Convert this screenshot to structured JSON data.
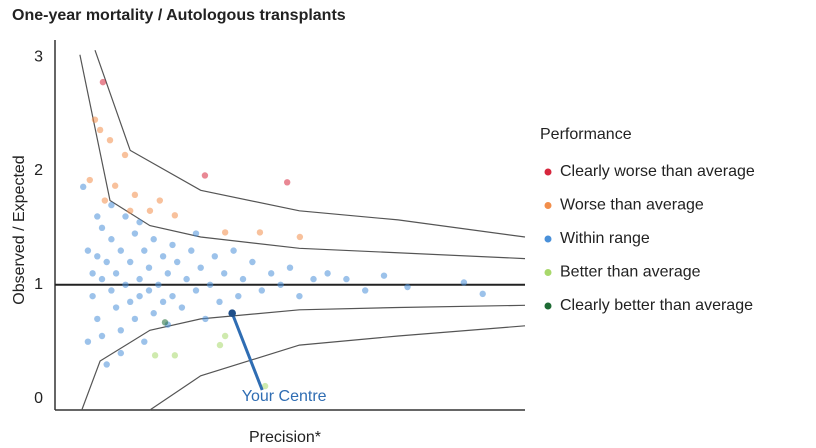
{
  "chart_data": {
    "type": "scatter",
    "title": "One-year mortality / Autologous transplants",
    "x_label": "Precision*",
    "y_label": "Observed / Expected",
    "legend_title": "Performance",
    "xlim": [
      0,
      100
    ],
    "ylim": [
      -0.1,
      3.15
    ],
    "yticks": [
      0,
      1,
      2,
      3
    ],
    "reference_line": 1,
    "series": [
      {
        "name": "Clearly worse than average",
        "color": "#d7263d",
        "x": [
          10.2,
          31.9,
          49.4
        ],
        "values": [
          2.78,
          1.96,
          1.9
        ]
      },
      {
        "name": "Worse than average",
        "color": "#f28e4b",
        "x": [
          8.5,
          9.6,
          11.7,
          14.9,
          7.4,
          12.8,
          10.6,
          17,
          20.2,
          25.5,
          36.2,
          43.6,
          52.1,
          16,
          22.3
        ],
        "values": [
          2.45,
          2.36,
          2.27,
          2.14,
          1.92,
          1.87,
          1.74,
          1.79,
          1.65,
          1.61,
          1.46,
          1.46,
          1.42,
          1.65,
          1.74
        ]
      },
      {
        "name": "Within range",
        "color": "#4a90d9",
        "x": [
          6,
          7,
          8,
          8,
          9,
          9,
          10,
          10,
          10,
          11,
          11,
          12,
          12,
          13,
          13,
          14,
          14,
          15,
          15,
          16,
          16,
          17,
          17,
          18,
          18,
          19,
          19,
          20,
          20,
          21,
          21,
          22,
          23,
          23,
          24,
          25,
          25,
          26,
          27,
          28,
          29,
          30,
          31,
          32,
          33,
          34,
          35,
          36,
          38,
          39,
          40,
          42,
          44,
          46,
          48,
          50,
          52,
          55,
          58,
          62,
          66,
          70,
          75,
          87,
          91,
          12,
          9,
          14,
          18,
          24,
          30,
          7
        ],
        "values": [
          1.86,
          1.3,
          1.1,
          0.9,
          1.25,
          0.7,
          1.5,
          1.05,
          0.55,
          0.3,
          1.2,
          0.95,
          1.4,
          0.8,
          1.1,
          1.3,
          0.6,
          1.0,
          1.6,
          0.85,
          1.2,
          1.45,
          0.7,
          1.05,
          0.9,
          1.3,
          0.5,
          1.15,
          0.95,
          1.4,
          0.75,
          1.0,
          1.25,
          0.85,
          1.1,
          0.9,
          1.35,
          1.2,
          0.8,
          1.05,
          1.3,
          0.95,
          1.15,
          0.7,
          1.0,
          1.25,
          0.85,
          1.1,
          1.3,
          0.9,
          1.05,
          1.2,
          0.95,
          1.1,
          1.0,
          1.15,
          0.9,
          1.05,
          1.1,
          1.05,
          0.95,
          1.08,
          0.98,
          1.02,
          0.92,
          1.7,
          1.6,
          0.4,
          1.55,
          0.65,
          1.45,
          0.5
        ]
      },
      {
        "name": "Better than average",
        "color": "#a8d86b",
        "x": [
          21.3,
          25.5,
          35.1,
          36.2,
          44.7
        ],
        "values": [
          0.38,
          0.38,
          0.47,
          0.55,
          0.11
        ]
      },
      {
        "name": "Clearly better than average",
        "color": "#1e6b34",
        "x": [
          23.4
        ],
        "values": [
          0.67
        ]
      }
    ],
    "limits": [
      {
        "x": [
          8.5,
          16,
          31,
          52,
          73,
          100
        ],
        "values": [
          3.06,
          2.18,
          1.83,
          1.65,
          1.57,
          1.42
        ]
      },
      {
        "x": [
          5.3,
          11.7,
          20.2,
          31,
          52,
          100
        ],
        "values": [
          3.02,
          1.74,
          1.52,
          1.42,
          1.32,
          1.23
        ]
      },
      {
        "x": [
          5.7,
          9.6,
          20.2,
          31,
          52,
          73,
          100
        ],
        "values": [
          -0.1,
          0.33,
          0.6,
          0.7,
          0.78,
          0.8,
          0.82
        ]
      },
      {
        "x": [
          20.2,
          31,
          52,
          73,
          100
        ],
        "values": [
          -0.1,
          0.2,
          0.47,
          0.55,
          0.64
        ]
      }
    ],
    "annotation": {
      "text": "Your Centre",
      "x": 37.7,
      "y": 0.75,
      "color": "#2f6db3"
    }
  }
}
